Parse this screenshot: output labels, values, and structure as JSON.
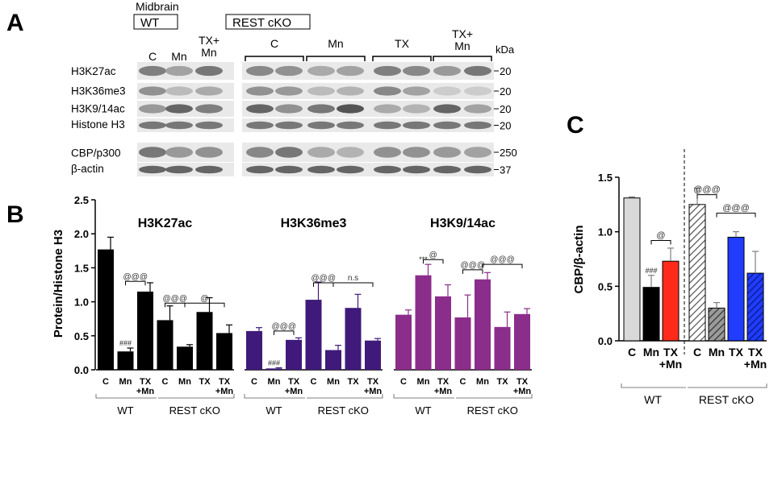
{
  "panel_letters": {
    "a": "A",
    "b": "B",
    "c": "C"
  },
  "blot": {
    "region_label": "Midbrain",
    "wt_label": "WT",
    "cko_label": "REST cKO",
    "kda_label": "kDa",
    "wt_lanes": [
      "C",
      "Mn",
      "TX+\nMn"
    ],
    "cko_groups": [
      "C",
      "Mn",
      "TX",
      "TX+\nMn"
    ],
    "rows": [
      {
        "name": "H3K27ac",
        "kda": "20",
        "wt": [
          0.55,
          0.35,
          0.6
        ],
        "cko": [
          0.5,
          0.45,
          0.3,
          0.35,
          0.55,
          0.5,
          0.4,
          0.6
        ]
      },
      {
        "name": "H3K36me3",
        "kda": "20",
        "wt": [
          0.45,
          0.2,
          0.3
        ],
        "cko": [
          0.45,
          0.4,
          0.2,
          0.25,
          0.5,
          0.35,
          0.1,
          0.1
        ]
      },
      {
        "name": "H3K9/14ac",
        "kda": "20",
        "wt": [
          0.4,
          0.7,
          0.55
        ],
        "cko": [
          0.7,
          0.45,
          0.6,
          0.8,
          0.3,
          0.25,
          0.7,
          0.35
        ]
      },
      {
        "name": "Histone H3",
        "kda": "20",
        "wt": [
          0.6,
          0.6,
          0.6
        ],
        "cko": [
          0.6,
          0.6,
          0.6,
          0.6,
          0.6,
          0.6,
          0.6,
          0.6
        ]
      },
      {
        "name": "CBP/p300",
        "kda": "250",
        "wt": [
          0.6,
          0.4,
          0.45
        ],
        "cko": [
          0.5,
          0.6,
          0.3,
          0.25,
          0.45,
          0.45,
          0.4,
          0.35
        ]
      },
      {
        "name": "β-actin",
        "kda": "37",
        "wt": [
          0.7,
          0.7,
          0.7
        ],
        "cko": [
          0.7,
          0.7,
          0.7,
          0.7,
          0.7,
          0.7,
          0.7,
          0.7
        ]
      }
    ]
  },
  "chart_data": [
    {
      "panel": "B",
      "type": "bar",
      "ylabel": "Protein/Histone H3",
      "ylim": [
        0,
        2.5
      ],
      "yticks": [
        "0.0",
        "0.5",
        "1.0",
        "1.5",
        "2.0",
        "2.5"
      ],
      "categories": [
        "C",
        "Mn",
        "TX\n+Mn",
        "C",
        "Mn",
        "TX",
        "TX\n+Mn"
      ],
      "group_labels": [
        "WT",
        "REST cKO"
      ],
      "series": [
        {
          "name": "H3K27ac",
          "color": "#000000",
          "values": [
            1.77,
            0.27,
            1.15,
            0.73,
            0.34,
            0.85,
            0.54
          ],
          "errors": [
            0.18,
            0.05,
            0.13,
            0.21,
            0.03,
            0.21,
            0.12
          ],
          "annotations": [
            {
              "bar": 1,
              "text": "###"
            },
            {
              "bracket": [
                1,
                2
              ],
              "y": 1.3,
              "text": "@@@"
            },
            {
              "bracket": [
                3,
                4
              ],
              "y": 0.98,
              "text": "@@@"
            },
            {
              "bracket": [
                4,
                6
              ],
              "y": 0.98,
              "text": "@"
            }
          ]
        },
        {
          "name": "H3K36me3",
          "color": "#3f1a7a",
          "values": [
            0.57,
            0.02,
            0.44,
            1.03,
            0.29,
            0.91,
            0.43
          ],
          "errors": [
            0.05,
            0.01,
            0.03,
            0.26,
            0.07,
            0.2,
            0.03
          ],
          "annotations": [
            {
              "bar": 1,
              "text": "###"
            },
            {
              "bracket": [
                1,
                2
              ],
              "y": 0.57,
              "text": "@@@"
            },
            {
              "bracket": [
                3,
                4
              ],
              "y": 1.28,
              "text": "@@@"
            },
            {
              "bracket": [
                4,
                6
              ],
              "y": 1.28,
              "text": "n.s"
            }
          ]
        },
        {
          "name": "H3K9/14ac",
          "color": "#8b2d8a",
          "values": [
            0.81,
            1.39,
            1.08,
            0.77,
            1.33,
            0.63,
            0.82
          ],
          "errors": [
            0.07,
            0.16,
            0.17,
            0.33,
            0.1,
            0.22,
            0.08
          ],
          "annotations": [
            {
              "bar": 1,
              "text": "***"
            },
            {
              "bracket": [
                1,
                2
              ],
              "y": 1.62,
              "text": "@"
            },
            {
              "bracket": [
                3,
                4
              ],
              "y": 1.47,
              "text": "@@@"
            },
            {
              "bracket": [
                4,
                6
              ],
              "y": 1.55,
              "text": "@@@"
            }
          ]
        }
      ]
    },
    {
      "panel": "C",
      "type": "bar",
      "ylabel": "CBP/β-actin",
      "ylim": [
        0,
        1.5
      ],
      "yticks": [
        "0.0",
        "0.5",
        "1.0",
        "1.5"
      ],
      "categories": [
        "C",
        "Mn",
        "TX\n+Mn",
        "C",
        "Mn",
        "TX",
        "TX\n+Mn"
      ],
      "group_labels": [
        "WT",
        "REST cKO"
      ],
      "values": [
        1.31,
        0.49,
        0.73,
        1.25,
        0.3,
        0.95,
        0.62
      ],
      "errors": [
        0.01,
        0.11,
        0.12,
        0.15,
        0.05,
        0.05,
        0.2
      ],
      "colors": [
        "#d9d9d9",
        "#000000",
        "#ff2a1a",
        "#ffffff",
        "#9a9a9a",
        "#1f3cff",
        "#1f3cff"
      ],
      "hatched": [
        false,
        false,
        false,
        true,
        true,
        false,
        true
      ],
      "annotations": [
        {
          "bar": 1,
          "text": "###"
        },
        {
          "bracket": [
            1,
            2
          ],
          "y": 0.92,
          "text": "@"
        },
        {
          "bracket": [
            3,
            4
          ],
          "y": 1.34,
          "text": "@@@"
        },
        {
          "bracket": [
            4,
            6
          ],
          "y": 1.17,
          "text": "@@@"
        }
      ]
    }
  ]
}
